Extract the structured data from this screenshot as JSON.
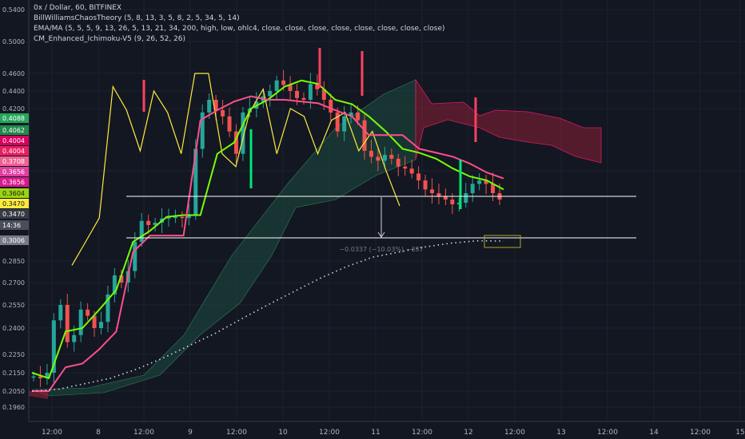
{
  "header": {
    "symbol": "0x / Dollar, 60, BITFINEX",
    "indicators": [
      "BillWilliamsChaosTheory (5, 8, 13, 3, 5, 8, 2, 5, 34, 5, 14)",
      "EMA/MA (5, 5, 5, 9, 13, 26, 5, 13, 21, 34, 200, high, low, ohlc4, close, close, close, close, close, close, close, close)",
      "CM_Enhanced_Ichimoku-V5 (9, 26, 52, 26)"
    ]
  },
  "chart_data": {
    "type": "line",
    "y_ticks": [
      "0.5400",
      "0.5000",
      "0.4600",
      "0.4400",
      "0.4200",
      "0.3656",
      "0.2850",
      "0.2700",
      "0.2550",
      "0.2400",
      "0.2250",
      "0.2150",
      "0.2050",
      "0.1960"
    ],
    "x_ticks": [
      "12:00",
      "8",
      "12:00",
      "9",
      "12:00",
      "10",
      "12:00",
      "11",
      "12:00",
      "12",
      "12:00",
      "13",
      "12:00",
      "14",
      "12:00",
      "15"
    ],
    "price_labels": [
      {
        "text": "0.4088",
        "color": "#26a65b"
      },
      {
        "text": "0.4062",
        "color": "#1f8a4c"
      },
      {
        "text": "0.4004",
        "color": "#d8005f"
      },
      {
        "text": "0.4004",
        "color": "#e91e63"
      },
      {
        "text": "0.3708",
        "color": "#f06292"
      },
      {
        "text": "0.3656",
        "color": "#e040a0"
      },
      {
        "text": "0.3656",
        "color": "#d81b8c"
      },
      {
        "text": "0.3604",
        "color": "#9bd412"
      },
      {
        "text": "0.3470",
        "color": "#ffeb3b"
      },
      {
        "text": "0.3470",
        "color": "#363a45"
      },
      {
        "text": "14:36",
        "color": "#4a4e5a"
      },
      {
        "text": "0.3006",
        "color": "#787b86"
      }
    ],
    "measure_label": "−0.0337 (−10.03%) −337",
    "ohlc_close_series": [
      0.213,
      0.212,
      0.215,
      0.245,
      0.255,
      0.232,
      0.236,
      0.252,
      0.248,
      0.24,
      0.244,
      0.262,
      0.275,
      0.27,
      0.278,
      0.3,
      0.335,
      0.328,
      0.332,
      0.339,
      0.341,
      0.342,
      0.34,
      0.345,
      0.4,
      0.415,
      0.43,
      0.418,
      0.41,
      0.405,
      0.395,
      0.415,
      0.42,
      0.428,
      0.434,
      0.44,
      0.452,
      0.447,
      0.44,
      0.432,
      0.43,
      0.448,
      0.442,
      0.43,
      0.415,
      0.405,
      0.41,
      0.415,
      0.408,
      0.398,
      0.392,
      0.388,
      0.394,
      0.39,
      0.382,
      0.38,
      0.375,
      0.368,
      0.362,
      0.36,
      0.358,
      0.356,
      0.353,
      0.354,
      0.36,
      0.365,
      0.368,
      0.365,
      0.36,
      0.356
    ],
    "series": [
      {
        "color": "#ffeb3b",
        "values": [
          0.282,
          0.3,
          0.34,
          0.445,
          0.418,
          0.398,
          0.44,
          0.415,
          0.395,
          0.46,
          0.46,
          0.395,
          0.382,
          0.415,
          0.442,
          0.395,
          0.42,
          0.41,
          0.395,
          0.408,
          0.415,
          0.398,
          0.405,
          0.378,
          0.352
        ]
      },
      {
        "color": "#76ff03",
        "values": [
          0.215,
          0.212,
          0.238,
          0.24,
          0.252,
          0.265,
          0.3,
          0.318,
          0.342,
          0.345,
          0.345,
          0.395,
          0.402,
          0.42,
          0.43,
          0.445,
          0.452,
          0.448,
          0.43,
          0.425,
          0.41,
          0.405,
          0.4,
          0.396,
          0.39,
          0.38,
          0.372,
          0.368,
          0.362
        ]
      },
      {
        "color": "#ff4f8b",
        "values": [
          0.205,
          0.205,
          0.218,
          0.22,
          0.228,
          0.238,
          0.292,
          0.31,
          0.31,
          0.31,
          0.408,
          0.418,
          0.428,
          0.434,
          0.43,
          0.43,
          0.428,
          0.426,
          0.418,
          0.41,
          0.404,
          0.404,
          0.404,
          0.4,
          0.396,
          0.392,
          0.385,
          0.376,
          0.37
        ]
      },
      {
        "color": "#d1d4dc",
        "values": [
          0.205,
          0.206,
          0.209,
          0.212,
          0.217,
          0.223,
          0.23,
          0.237,
          0.246,
          0.255,
          0.264,
          0.273,
          0.281,
          0.288,
          0.292,
          0.296,
          0.299,
          0.301,
          0.3006
        ]
      }
    ]
  }
}
